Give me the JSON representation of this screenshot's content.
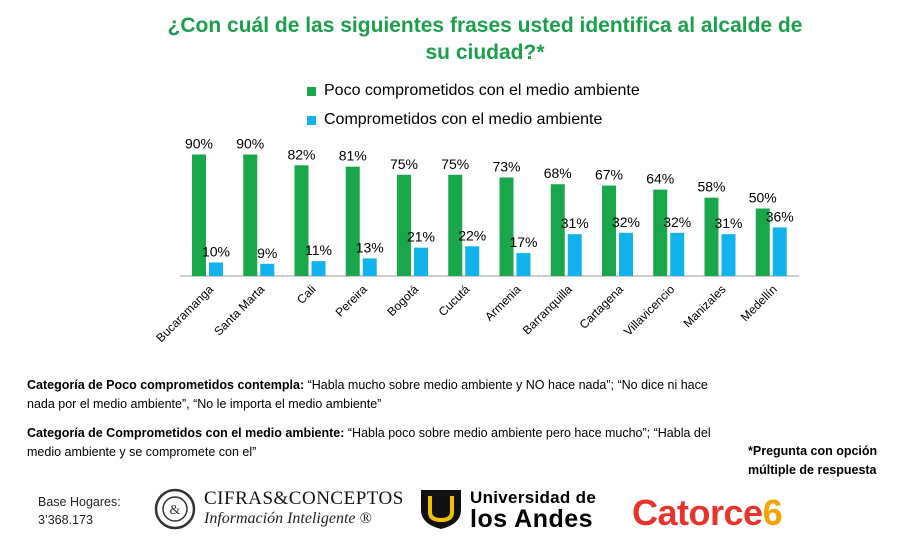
{
  "chart_data": {
    "type": "bar",
    "title": "¿Con cuál de las siguientes frases usted identifica al alcalde de su ciudad?*",
    "categories": [
      "Bucaramanga",
      "Santa Marta",
      "Cali",
      "Pereira",
      "Bogotá",
      "Cucutá",
      "Armenia",
      "Barranquilla",
      "Cartagena",
      "Villavicencio",
      "Manizales",
      "Medellín"
    ],
    "series": [
      {
        "name": "Poco comprometidos con el medio ambiente",
        "color": "#1aa64b",
        "values": [
          90,
          90,
          82,
          81,
          75,
          75,
          73,
          68,
          67,
          64,
          58,
          50
        ]
      },
      {
        "name": "Comprometidos con el medio ambiente",
        "color": "#12b2ec",
        "values": [
          10,
          9,
          11,
          13,
          21,
          22,
          17,
          31,
          32,
          32,
          31,
          36
        ]
      }
    ],
    "value_suffix": "%",
    "ylim": [
      0,
      100
    ],
    "legend_position": "top",
    "grid": false
  },
  "notes": {
    "poco_label": "Categoría de Poco comprometidos contempla:",
    "poco_text": " “Habla mucho sobre medio ambiente y NO hace nada”; “No dice ni hace nada por el medio ambiente”,  “No le importa el medio ambiente”",
    "comp_label": "Categoría de Comprometidos con el medio ambiente:",
    "comp_text": " “Habla poco sobre medio ambiente pero hace mucho”; “Habla del medio ambiente y se compromete con el”"
  },
  "footnote": {
    "line1": "*Pregunta con opción",
    "line2": "múltiple de respuesta"
  },
  "base": {
    "line1": "Base Hogares:",
    "line2": "3’368.173"
  },
  "logos": {
    "cifras_line1": "CIFRAS&CONCEPTOS",
    "cifras_line2": "Información Inteligente ®",
    "uandes_line1": "Universidad de",
    "uandes_line2": "los Andes",
    "catorce_word": "Catorce",
    "catorce_num": "6"
  }
}
